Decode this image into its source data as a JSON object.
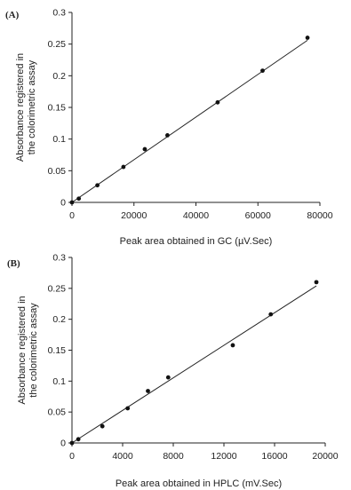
{
  "chart_data": [
    {
      "type": "scatter",
      "panel_label": "(A)",
      "xlabel": "Peak area obtained in GC (µV.Sec)",
      "ylabel": [
        "Absorbance registered in",
        "the colorimetric assay"
      ],
      "xlim": [
        0,
        80000
      ],
      "ylim": [
        0,
        0.3
      ],
      "x_ticks": [
        "0",
        "20000",
        "40000",
        "60000",
        "80000"
      ],
      "x_tick_values": [
        0,
        20000,
        40000,
        60000,
        80000
      ],
      "y_ticks": [
        "0",
        "0.05",
        "0.1",
        "0.15",
        "0.2",
        "0.25",
        "0.3"
      ],
      "y_tick_values": [
        0,
        0.05,
        0.1,
        0.15,
        0.2,
        0.25,
        0.3
      ],
      "points": [
        {
          "x": 0,
          "y": 0
        },
        {
          "x": 2200,
          "y": 0.006
        },
        {
          "x": 8200,
          "y": 0.027
        },
        {
          "x": 16600,
          "y": 0.056
        },
        {
          "x": 23500,
          "y": 0.084
        },
        {
          "x": 30800,
          "y": 0.106
        },
        {
          "x": 47000,
          "y": 0.158
        },
        {
          "x": 61500,
          "y": 0.208
        },
        {
          "x": 76000,
          "y": 0.26
        }
      ],
      "trendline": {
        "x": [
          0,
          76000
        ],
        "y": [
          0,
          0.256
        ]
      },
      "grid": false
    },
    {
      "type": "scatter",
      "panel_label": "(B)",
      "xlabel": "Peak area obtained in HPLC (mV.Sec)",
      "ylabel": [
        "Absorbance registered in",
        "the colorimetric assay"
      ],
      "xlim": [
        0,
        20000
      ],
      "ylim": [
        0,
        0.3
      ],
      "x_ticks": [
        "0",
        "4000",
        "8000",
        "12000",
        "16000",
        "20000"
      ],
      "x_tick_values": [
        0,
        4000,
        8000,
        12000,
        16000,
        20000
      ],
      "y_ticks": [
        "0",
        "0.05",
        "0.1",
        "0.15",
        "0.2",
        "0.25",
        "0.3"
      ],
      "y_tick_values": [
        0,
        0.05,
        0.1,
        0.15,
        0.2,
        0.25,
        0.3
      ],
      "points": [
        {
          "x": 0,
          "y": 0
        },
        {
          "x": 500,
          "y": 0.006
        },
        {
          "x": 2400,
          "y": 0.027
        },
        {
          "x": 4400,
          "y": 0.056
        },
        {
          "x": 6000,
          "y": 0.084
        },
        {
          "x": 7600,
          "y": 0.106
        },
        {
          "x": 12700,
          "y": 0.158
        },
        {
          "x": 15700,
          "y": 0.208
        },
        {
          "x": 19300,
          "y": 0.26
        }
      ],
      "trendline": {
        "x": [
          0,
          19300
        ],
        "y": [
          0,
          0.254
        ]
      },
      "grid": false
    }
  ]
}
